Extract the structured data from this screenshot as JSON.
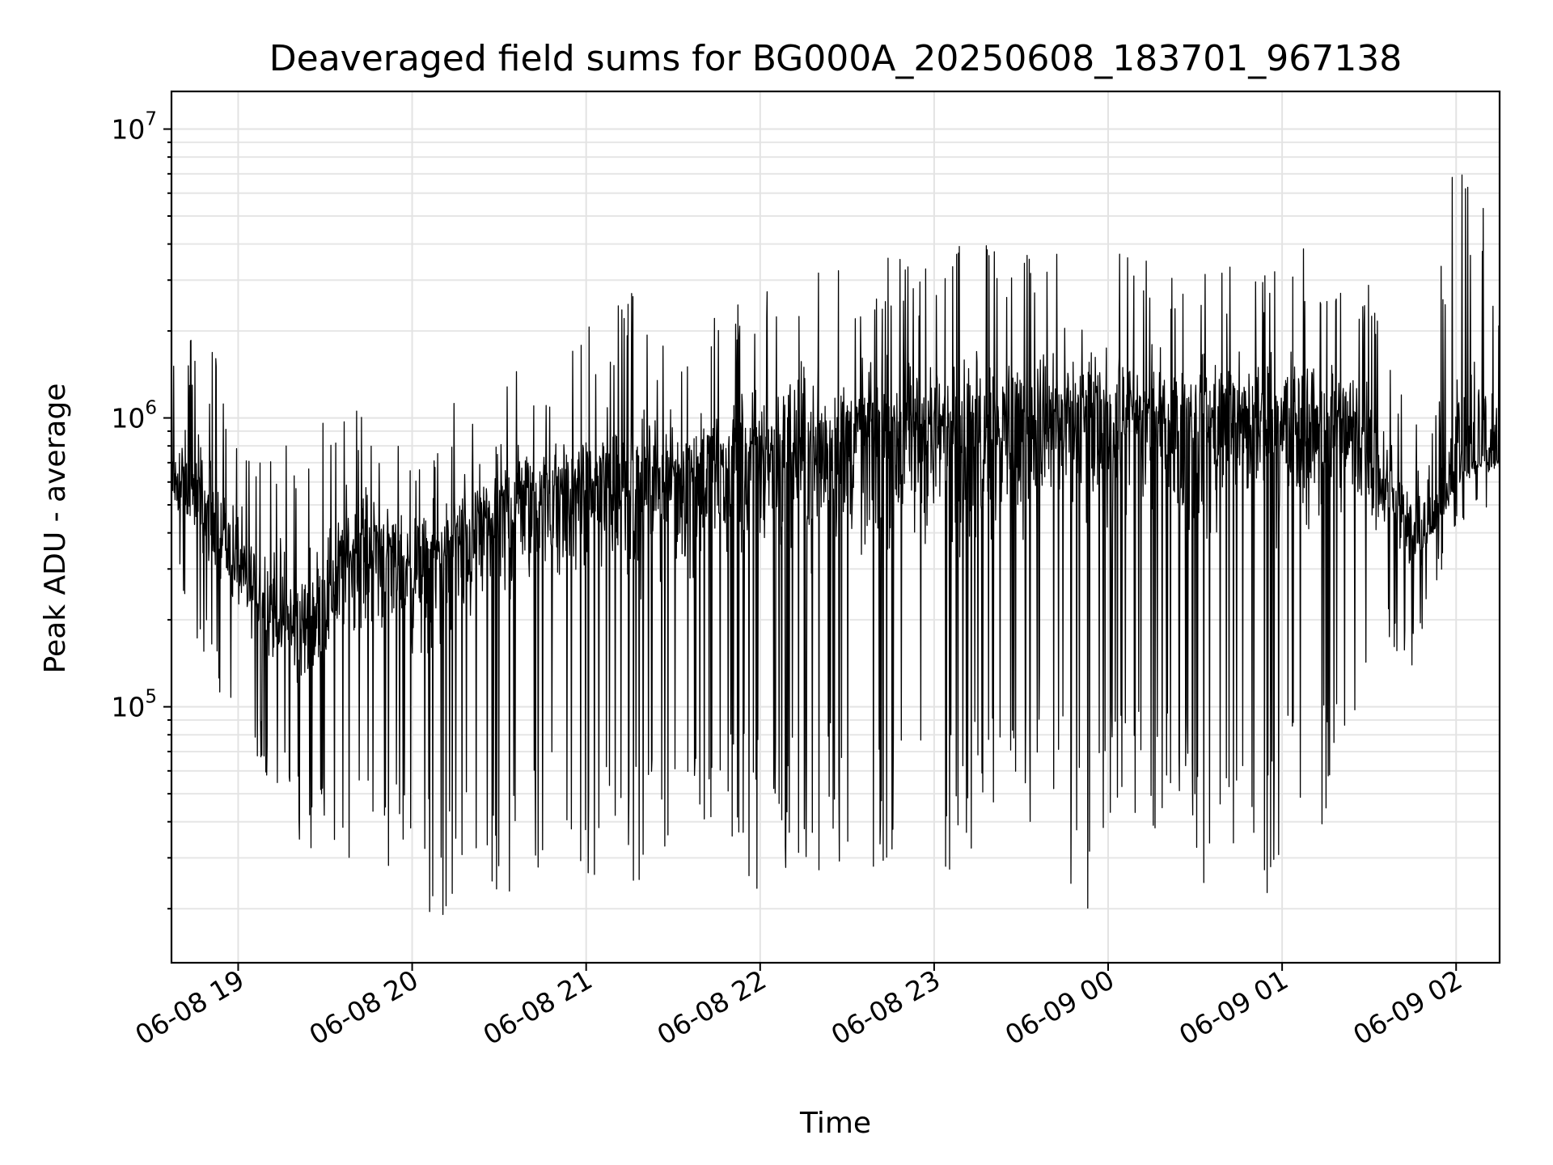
{
  "chart_data": {
    "type": "line",
    "title": "Deaveraged field sums for BG000A_20250608_183701_967138",
    "xlabel": "Time",
    "ylabel": "Peak ADU - average",
    "yscale": "log",
    "ylim": [
      13000,
      13500000
    ],
    "xlim": [
      "2025-06-08 18:37",
      "2025-06-09 02:15"
    ],
    "grid": true,
    "x_ticks": [
      {
        "value": "2025-06-08 19:00",
        "label": "06-08 19"
      },
      {
        "value": "2025-06-08 20:00",
        "label": "06-08 20"
      },
      {
        "value": "2025-06-08 21:00",
        "label": "06-08 21"
      },
      {
        "value": "2025-06-08 22:00",
        "label": "06-08 22"
      },
      {
        "value": "2025-06-08 23:00",
        "label": "06-08 23"
      },
      {
        "value": "2025-06-09 00:00",
        "label": "06-09 00"
      },
      {
        "value": "2025-06-09 01:00",
        "label": "06-09 01"
      },
      {
        "value": "2025-06-09 02:00",
        "label": "06-09 02"
      }
    ],
    "y_ticks": [
      {
        "value": 100000,
        "base": "10",
        "exp": "5"
      },
      {
        "value": 1000000,
        "base": "10",
        "exp": "6"
      },
      {
        "value": 10000000,
        "base": "10",
        "exp": "7"
      }
    ],
    "series": [
      {
        "color": "#000000",
        "x": [
          "2025-06-08 18:37",
          "2025-06-08 18:45",
          "2025-06-08 18:52",
          "2025-06-08 19:00",
          "2025-06-08 19:07",
          "2025-06-08 19:15",
          "2025-06-08 19:22",
          "2025-06-08 19:30",
          "2025-06-08 19:37",
          "2025-06-08 19:45",
          "2025-06-08 19:52",
          "2025-06-08 20:00",
          "2025-06-08 20:07",
          "2025-06-08 20:15",
          "2025-06-08 20:22",
          "2025-06-08 20:30",
          "2025-06-08 20:37",
          "2025-06-08 20:45",
          "2025-06-08 20:52",
          "2025-06-08 21:00",
          "2025-06-08 21:07",
          "2025-06-08 21:15",
          "2025-06-08 21:22",
          "2025-06-08 21:30",
          "2025-06-08 21:37",
          "2025-06-08 21:45",
          "2025-06-08 21:52",
          "2025-06-08 22:00",
          "2025-06-08 22:07",
          "2025-06-08 22:15",
          "2025-06-08 22:22",
          "2025-06-08 22:30",
          "2025-06-08 22:37",
          "2025-06-08 22:45",
          "2025-06-08 22:52",
          "2025-06-08 23:00",
          "2025-06-08 23:07",
          "2025-06-08 23:15",
          "2025-06-08 23:22",
          "2025-06-08 23:30",
          "2025-06-08 23:37",
          "2025-06-08 23:45",
          "2025-06-08 23:52",
          "2025-06-09 00:00",
          "2025-06-09 00:07",
          "2025-06-09 00:15",
          "2025-06-09 00:22",
          "2025-06-09 00:30",
          "2025-06-09 00:37",
          "2025-06-09 00:45",
          "2025-06-09 00:52",
          "2025-06-09 01:00",
          "2025-06-09 01:07",
          "2025-06-09 01:15",
          "2025-06-09 01:22",
          "2025-06-09 01:30",
          "2025-06-09 01:37",
          "2025-06-09 01:45",
          "2025-06-09 01:52",
          "2025-06-09 02:00",
          "2025-06-09 02:07",
          "2025-06-09 02:15"
        ],
        "y": [
          600000,
          500000,
          400000,
          300000,
          230000,
          200000,
          180000,
          230000,
          330000,
          380000,
          350000,
          300000,
          320000,
          360000,
          420000,
          450000,
          520000,
          540000,
          560000,
          560000,
          580000,
          600000,
          620000,
          650000,
          670000,
          690000,
          720000,
          760000,
          790000,
          800000,
          820000,
          850000,
          870000,
          890000,
          890000,
          900000,
          920000,
          940000,
          950000,
          960000,
          970000,
          980000,
          980000,
          990000,
          990000,
          1000000,
          1000000,
          1000000,
          1000000,
          1000000,
          1000000,
          980000,
          960000,
          940000,
          920000,
          800000,
          560000,
          380000,
          420000,
          640000,
          700000,
          720000
        ],
        "y_min": [
          380000,
          150000,
          120000,
          80000,
          60000,
          50000,
          30000,
          30000,
          30000,
          28000,
          26000,
          21000,
          18000,
          20000,
          22000,
          17000,
          25000,
          28000,
          23000,
          21000,
          32000,
          20000,
          30000,
          28000,
          35000,
          40000,
          28000,
          22000,
          22000,
          28000,
          27000,
          25000,
          20000,
          25000,
          22000,
          28000,
          22000,
          30000,
          40000,
          28000,
          60000,
          28000,
          16000,
          45000,
          27000,
          30000,
          48000,
          22000,
          20000,
          28000,
          20000,
          26000,
          30000,
          40000,
          30000,
          80000,
          170000,
          120000,
          240000,
          420000,
          450000,
          480000
        ],
        "y_max": [
          1800000,
          2000000,
          1800000,
          1000000,
          900000,
          850000,
          700000,
          1000000,
          1200000,
          1000000,
          850000,
          800000,
          900000,
          1200000,
          1400000,
          1900000,
          1700000,
          1500000,
          1600000,
          2100000,
          2200000,
          3200000,
          2000000,
          1800000,
          1800000,
          2500000,
          3100000,
          3000000,
          3600000,
          3700000,
          3800000,
          3400000,
          3600000,
          3700000,
          3400000,
          4200000,
          4600000,
          4200000,
          4400000,
          3800000,
          4300000,
          4400000,
          4500000,
          4000000,
          3800000,
          3700000,
          3600000,
          3800000,
          3500000,
          3300000,
          3200000,
          3900000,
          4000000,
          3800000,
          3900000,
          3400000,
          1800000,
          900000,
          2500000,
          9700000,
          8200000,
          3300000
        ]
      }
    ]
  }
}
